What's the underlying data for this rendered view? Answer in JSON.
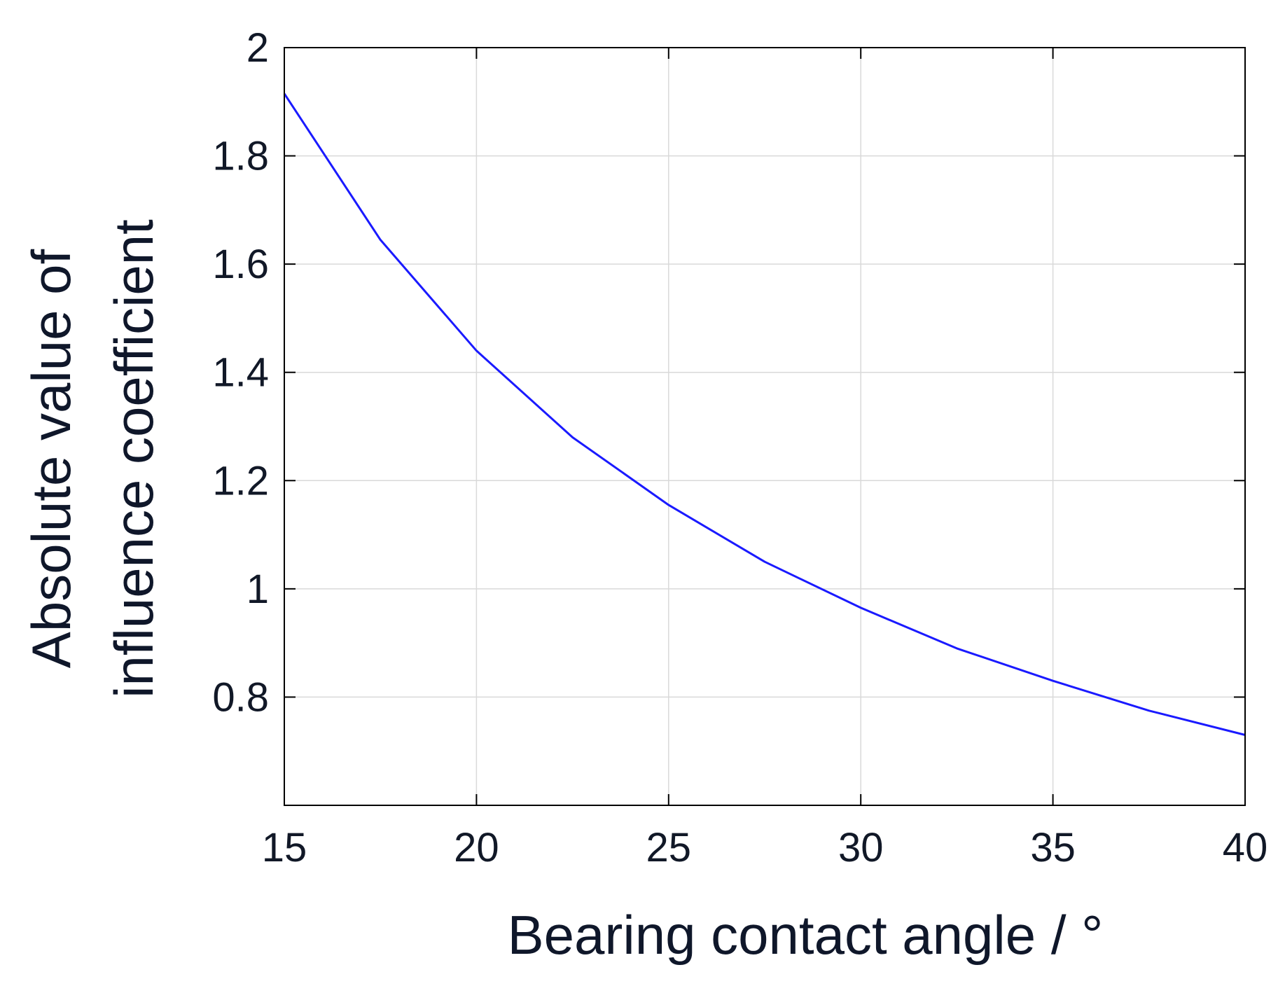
{
  "chart_data": {
    "type": "line",
    "title": "",
    "xlabel": "Bearing contact angle / °",
    "ylabel_lines": [
      "Absolute value of",
      "influence coefficient"
    ],
    "xlim": [
      15,
      40
    ],
    "ylim": [
      0.6,
      2.0
    ],
    "xticks": [
      15,
      20,
      25,
      30,
      35,
      40
    ],
    "yticks": [
      0.8,
      1,
      1.2,
      1.4,
      1.6,
      1.8,
      2
    ],
    "ytick_labels": [
      "0.8",
      "1",
      "1.2",
      "1.4",
      "1.6",
      "1.8",
      "2"
    ],
    "xtick_labels": [
      "15",
      "20",
      "25",
      "30",
      "35",
      "40"
    ],
    "grid": true,
    "colors": {
      "line": "#1a1aff",
      "grid": "#d9d9d9",
      "axes": "#000000"
    },
    "series": [
      {
        "x": [
          15,
          17.5,
          20,
          22.5,
          25,
          27.5,
          30,
          32.5,
          35,
          37.5,
          40
        ],
        "y": [
          1.915,
          1.645,
          1.44,
          1.28,
          1.155,
          1.05,
          0.965,
          0.89,
          0.83,
          0.775,
          0.73
        ]
      }
    ]
  }
}
